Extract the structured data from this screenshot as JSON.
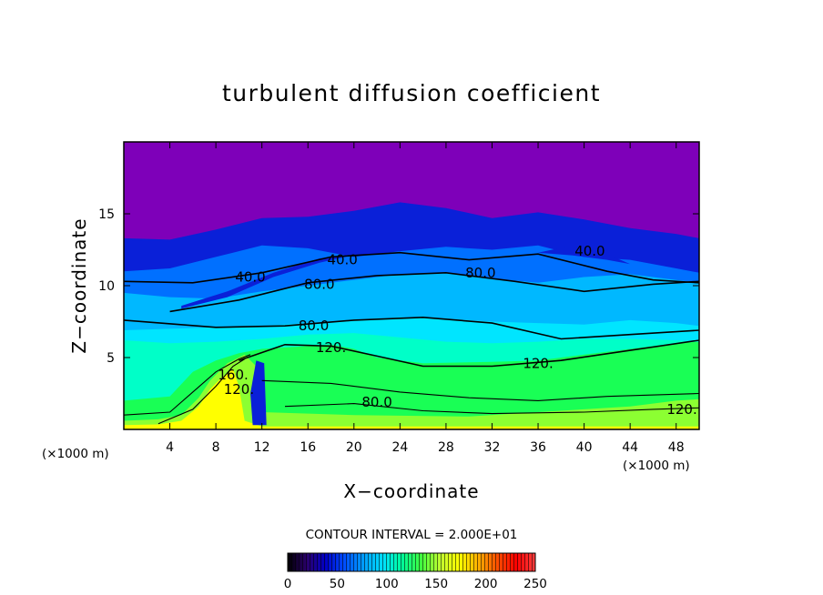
{
  "chart_data": {
    "type": "heatmap",
    "title": "turbulent diffusion coefficient",
    "xlabel": "X−coordinate",
    "ylabel": "Z−coordinate",
    "x_unit_left": "(×1000 m)",
    "x_unit_right": "(×1000 m)",
    "xlim": [
      0,
      50
    ],
    "ylim": [
      0,
      20
    ],
    "x_ticks": [
      4,
      8,
      12,
      16,
      20,
      24,
      28,
      32,
      36,
      40,
      44,
      48
    ],
    "y_ticks": [
      5,
      10,
      15
    ],
    "contour_interval_text": "CONTOUR INTERVAL = 2.000E+01",
    "contour_labels": [
      {
        "text": "40.0",
        "x": 11.0,
        "y": 10.6
      },
      {
        "text": "40.0",
        "x": 19.0,
        "y": 11.8
      },
      {
        "text": "80.0",
        "x": 17.0,
        "y": 10.1
      },
      {
        "text": "80.0",
        "x": 31.0,
        "y": 10.9
      },
      {
        "text": "40.0",
        "x": 40.5,
        "y": 12.4
      },
      {
        "text": "80.0",
        "x": 16.5,
        "y": 7.2
      },
      {
        "text": "120.",
        "x": 18.0,
        "y": 5.7
      },
      {
        "text": "120.",
        "x": 36.0,
        "y": 4.6
      },
      {
        "text": "80.0",
        "x": 22.0,
        "y": 1.9
      },
      {
        "text": "120.",
        "x": 48.5,
        "y": 1.4
      },
      {
        "text": "160.",
        "x": 9.5,
        "y": 3.8
      },
      {
        "text": "120.",
        "x": 10.0,
        "y": 2.8
      }
    ],
    "colorbar": {
      "ticks": [
        0,
        50,
        100,
        150,
        200,
        250
      ],
      "range": [
        0,
        250
      ],
      "colors": [
        "#000000",
        "#2a006b",
        "#0000c8",
        "#0050ff",
        "#00a0ff",
        "#00e0ff",
        "#00ff9a",
        "#40ff40",
        "#c0ff30",
        "#ffff00",
        "#ffb000",
        "#ff5000",
        "#ff0000",
        "#ff4040"
      ]
    },
    "colors": {
      "background_top": "#7e00b9",
      "band_dark_blue": "#0a20d8",
      "band_blue": "#0070ff",
      "band_light_blue": "#00b8ff",
      "band_cyan": "#00e5ff",
      "band_aqua": "#00ffc8",
      "band_green": "#19ff55",
      "band_lime": "#8cff32",
      "band_yellow": "#ffff00"
    }
  }
}
